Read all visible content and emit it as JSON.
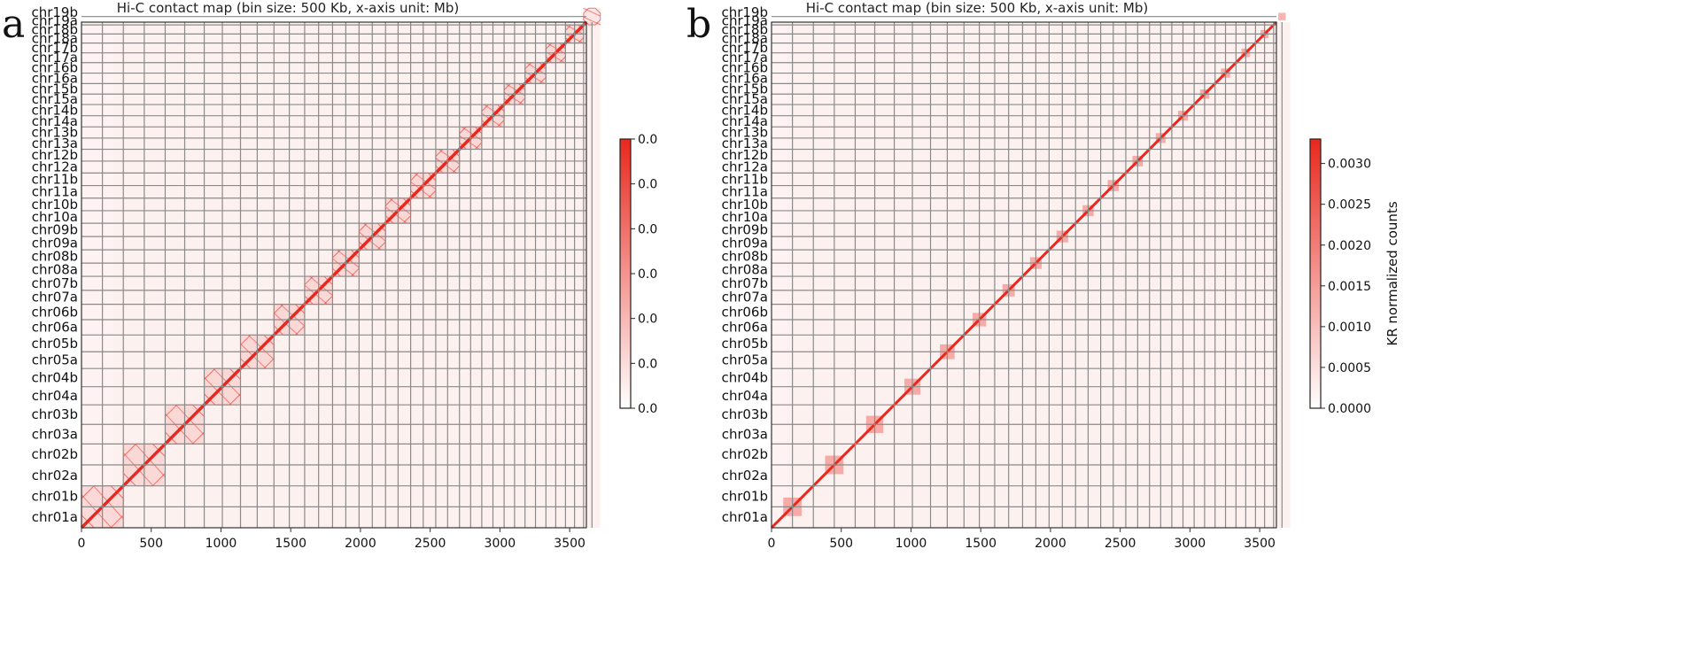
{
  "chromosome_bins": [
    "chr01a",
    "chr01b",
    "chr02a",
    "chr02b",
    "chr03a",
    "chr03b",
    "chr04a",
    "chr04b",
    "chr05a",
    "chr05b",
    "chr06a",
    "chr06b",
    "chr07a",
    "chr07b",
    "chr08a",
    "chr08b",
    "chr09a",
    "chr09b",
    "chr10a",
    "chr10b",
    "chr11a",
    "chr11b",
    "chr12a",
    "chr12b",
    "chr13a",
    "chr13b",
    "chr14a",
    "chr14b",
    "chr15a",
    "chr15b",
    "chr16a",
    "chr16b",
    "chr17a",
    "chr17b",
    "chr18a",
    "chr18b",
    "chr19a",
    "chr19b"
  ],
  "chromosome_sizes_mb": [
    150,
    150,
    150,
    150,
    140,
    140,
    130,
    130,
    120,
    120,
    110,
    110,
    100,
    100,
    95,
    95,
    95,
    95,
    90,
    90,
    90,
    90,
    85,
    85,
    80,
    80,
    80,
    80,
    75,
    75,
    75,
    75,
    70,
    70,
    65,
    65,
    60,
    60
  ],
  "colors": {
    "grid": "#8a8a8a",
    "signal": "#e8281e",
    "background": "#ffffff"
  },
  "chart_data": [
    {
      "type": "heatmap",
      "panel_label": "a",
      "title": "Hi-C contact map (bin size: 500 Kb, x-axis unit: Mb)",
      "xlabel": "",
      "ylabel": "",
      "x_ticks": [
        0,
        500,
        1000,
        1500,
        2000,
        2500,
        3000,
        3500
      ],
      "xlim": [
        0,
        3620
      ],
      "y_tick_labels": [
        "chr19b",
        "chr19a",
        "chr18b",
        "chr18a",
        "chr17b",
        "chr17a",
        "chr16b",
        "chr16a",
        "chr15b",
        "chr15a",
        "chr14b",
        "chr14a",
        "chr13b",
        "chr13a",
        "chr12b",
        "chr12a",
        "chr11b",
        "chr11a",
        "chr10b",
        "chr10a",
        "chr09b",
        "chr09a",
        "chr08b",
        "chr08a",
        "chr07b",
        "chr07a",
        "chr06b",
        "chr06a",
        "chr05b",
        "chr05a",
        "chr04b",
        "chr04a",
        "chr03b",
        "chr03a",
        "chr02b",
        "chr02a",
        "chr01b",
        "chr01a"
      ],
      "pattern": "diagonal with chromosome-pair blocks outlined",
      "colorbar": {
        "label": "",
        "tick_labels": [
          "0.0",
          "0.0",
          "0.0",
          "0.0",
          "0.0",
          "0.0",
          "0.0"
        ],
        "colors": [
          "#ffffff",
          "#e8281e"
        ]
      }
    },
    {
      "type": "heatmap",
      "panel_label": "b",
      "title": "Hi-C contact map (bin size: 500 Kb, x-axis unit: Mb)",
      "xlabel": "",
      "ylabel": "",
      "x_ticks": [
        0,
        500,
        1000,
        1500,
        2000,
        2500,
        3000,
        3500
      ],
      "xlim": [
        0,
        3620
      ],
      "y_tick_labels": [
        "chr19b",
        "chr19a",
        "chr18b",
        "chr18a",
        "chr17b",
        "chr17a",
        "chr16b",
        "chr16a",
        "chr15b",
        "chr15a",
        "chr14b",
        "chr14a",
        "chr13b",
        "chr13a",
        "chr12b",
        "chr12a",
        "chr11b",
        "chr11a",
        "chr10b",
        "chr10a",
        "chr09b",
        "chr09a",
        "chr08b",
        "chr08a",
        "chr07b",
        "chr07a",
        "chr06b",
        "chr06a",
        "chr05b",
        "chr05a",
        "chr04b",
        "chr04a",
        "chr03b",
        "chr03a",
        "chr02b",
        "chr02a",
        "chr01b",
        "chr01a"
      ],
      "pattern": "diagonal with small blocks",
      "colorbar": {
        "label": "KR normalized counts",
        "tick_labels": [
          "0.0000",
          "0.0005",
          "0.0010",
          "0.0015",
          "0.0020",
          "0.0025",
          "0.0030"
        ],
        "range": [
          0,
          0.0033
        ],
        "colors": [
          "#ffffff",
          "#e8281e"
        ]
      }
    }
  ]
}
